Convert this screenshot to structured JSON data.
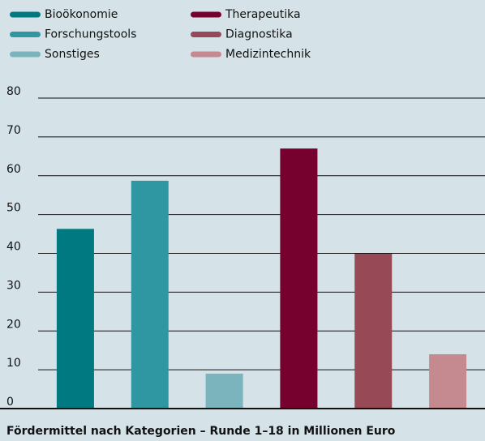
{
  "chart_data": {
    "type": "bar",
    "title": "Fördermittel nach Kategorien – Runde 1–18 in Millionen Euro",
    "categories": [
      "Bioökonomie",
      "Forschungstools",
      "Sonstiges",
      "Therapeutika",
      "Diagnostika",
      "Medizintechnik"
    ],
    "values": [
      46.3,
      58.7,
      9.0,
      67.0,
      39.9,
      14.0
    ],
    "colors": [
      "#007a80",
      "#2e97a2",
      "#7bb4bd",
      "#76002e",
      "#974955",
      "#c48a8f"
    ],
    "ylim": [
      0,
      80
    ],
    "yticks": [
      0,
      10,
      20,
      30,
      40,
      50,
      60,
      70,
      80
    ],
    "grid": true
  }
}
